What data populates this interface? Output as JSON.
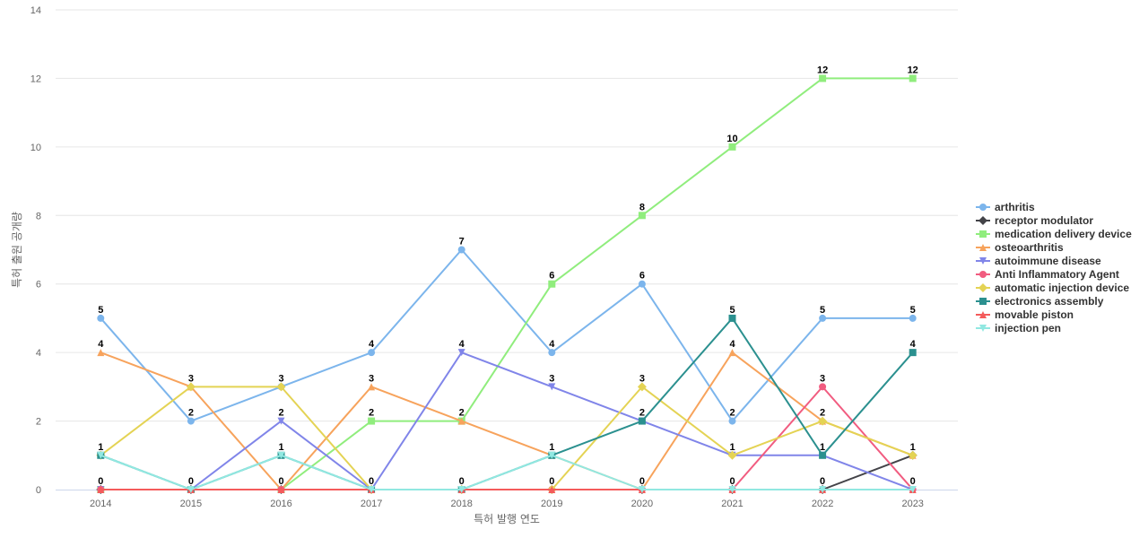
{
  "chart_data": {
    "type": "line",
    "xlabel": "특허 발행 연도",
    "ylabel": "특허 출원 공개량",
    "ylim": [
      0,
      14
    ],
    "yticks": [
      0,
      2,
      4,
      6,
      8,
      10,
      12,
      14
    ],
    "grid": true,
    "legend_position": "right",
    "categories": [
      "2014",
      "2015",
      "2016",
      "2017",
      "2018",
      "2019",
      "2020",
      "2021",
      "2022",
      "2023"
    ],
    "series": [
      {
        "name": "arthritis",
        "color": "#7cb5ec",
        "marker": "circle",
        "values": [
          5,
          2,
          3,
          4,
          7,
          4,
          6,
          2,
          5,
          5
        ]
      },
      {
        "name": "receptor modulator",
        "color": "#434348",
        "marker": "diamond",
        "values": [
          0,
          0,
          0,
          0,
          0,
          0,
          0,
          0,
          0,
          1
        ]
      },
      {
        "name": "medication delivery device",
        "color": "#90ed7d",
        "marker": "square",
        "values": [
          0,
          0,
          0,
          2,
          2,
          6,
          8,
          10,
          12,
          12
        ]
      },
      {
        "name": "osteoarthritis",
        "color": "#f7a35c",
        "marker": "triangle",
        "values": [
          4,
          3,
          0,
          3,
          2,
          1,
          0,
          4,
          2,
          1
        ]
      },
      {
        "name": "autoimmune disease",
        "color": "#8085e9",
        "marker": "triangle-down",
        "values": [
          0,
          0,
          2,
          0,
          4,
          3,
          2,
          1,
          1,
          0
        ]
      },
      {
        "name": "Anti Inflammatory Agent",
        "color": "#f15c80",
        "marker": "circle",
        "values": [
          0,
          0,
          0,
          0,
          0,
          0,
          0,
          0,
          3,
          0
        ]
      },
      {
        "name": "automatic injection device",
        "color": "#e4d354",
        "marker": "diamond",
        "values": [
          1,
          3,
          3,
          0,
          0,
          0,
          3,
          1,
          2,
          1
        ]
      },
      {
        "name": "electronics assembly",
        "color": "#2b908f",
        "marker": "square",
        "values": [
          1,
          0,
          1,
          0,
          0,
          1,
          2,
          5,
          1,
          4
        ]
      },
      {
        "name": "movable piston",
        "color": "#f45b5b",
        "marker": "triangle",
        "values": [
          0,
          0,
          0,
          0,
          0,
          0,
          0,
          0,
          0,
          0
        ]
      },
      {
        "name": "injection pen",
        "color": "#91e8e1",
        "marker": "triangle-down",
        "values": [
          1,
          0,
          1,
          0,
          0,
          1,
          0,
          0,
          0,
          0
        ]
      }
    ],
    "data_labels": [
      {
        "x": "2014",
        "value": 5
      },
      {
        "x": "2014",
        "value": 4
      },
      {
        "x": "2014",
        "value": 1
      },
      {
        "x": "2014",
        "value": 0
      },
      {
        "x": "2015",
        "value": 3
      },
      {
        "x": "2015",
        "value": 2
      },
      {
        "x": "2015",
        "value": 0
      },
      {
        "x": "2016",
        "value": 3
      },
      {
        "x": "2016",
        "value": 2
      },
      {
        "x": "2016",
        "value": 1
      },
      {
        "x": "2016",
        "value": 0
      },
      {
        "x": "2017",
        "value": 4
      },
      {
        "x": "2017",
        "value": 3
      },
      {
        "x": "2017",
        "value": 2
      },
      {
        "x": "2017",
        "value": 0
      },
      {
        "x": "2018",
        "value": 7
      },
      {
        "x": "2018",
        "value": 4
      },
      {
        "x": "2018",
        "value": 2
      },
      {
        "x": "2018",
        "value": 0
      },
      {
        "x": "2019",
        "value": 6
      },
      {
        "x": "2019",
        "value": 4
      },
      {
        "x": "2019",
        "value": 3
      },
      {
        "x": "2019",
        "value": 1
      },
      {
        "x": "2019",
        "value": 0
      },
      {
        "x": "2020",
        "value": 8
      },
      {
        "x": "2020",
        "value": 6
      },
      {
        "x": "2020",
        "value": 3
      },
      {
        "x": "2020",
        "value": 2
      },
      {
        "x": "2020",
        "value": 0
      },
      {
        "x": "2021",
        "value": 10
      },
      {
        "x": "2021",
        "value": 5
      },
      {
        "x": "2021",
        "value": 4
      },
      {
        "x": "2021",
        "value": 2
      },
      {
        "x": "2021",
        "value": 1
      },
      {
        "x": "2021",
        "value": 0
      },
      {
        "x": "2022",
        "value": 12
      },
      {
        "x": "2022",
        "value": 5
      },
      {
        "x": "2022",
        "value": 3
      },
      {
        "x": "2022",
        "value": 2
      },
      {
        "x": "2022",
        "value": 1
      },
      {
        "x": "2022",
        "value": 0
      },
      {
        "x": "2023",
        "value": 12
      },
      {
        "x": "2023",
        "value": 5
      },
      {
        "x": "2023",
        "value": 4
      },
      {
        "x": "2023",
        "value": 1
      },
      {
        "x": "2023",
        "value": 0
      }
    ]
  }
}
